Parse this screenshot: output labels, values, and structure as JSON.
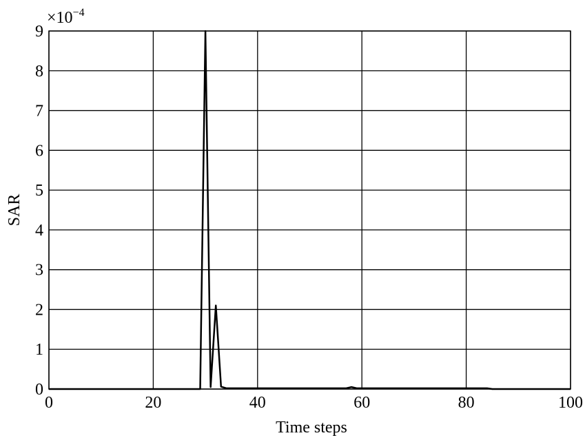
{
  "chart_data": {
    "type": "line",
    "x_label": "Time steps",
    "y_label": "SAR",
    "y_multiplier": {
      "base": "×10",
      "exponent": "−4"
    },
    "x": [
      0,
      29,
      30,
      31,
      32,
      33,
      34,
      57,
      58,
      59,
      83,
      84,
      85,
      100
    ],
    "series": [
      {
        "name": "SAR",
        "color": "#000000",
        "values": [
          0,
          0,
          9,
          0.05,
          2.1,
          0.06,
          0.02,
          0.02,
          0.05,
          0.02,
          0.02,
          0.02,
          0,
          0
        ]
      }
    ],
    "xlim": [
      0,
      100
    ],
    "xticks": [
      0,
      20,
      40,
      60,
      80,
      100
    ],
    "ylim": [
      0,
      9
    ],
    "yticks": [
      0,
      1,
      2,
      3,
      4,
      5,
      6,
      7,
      8,
      9
    ],
    "grid": true
  }
}
